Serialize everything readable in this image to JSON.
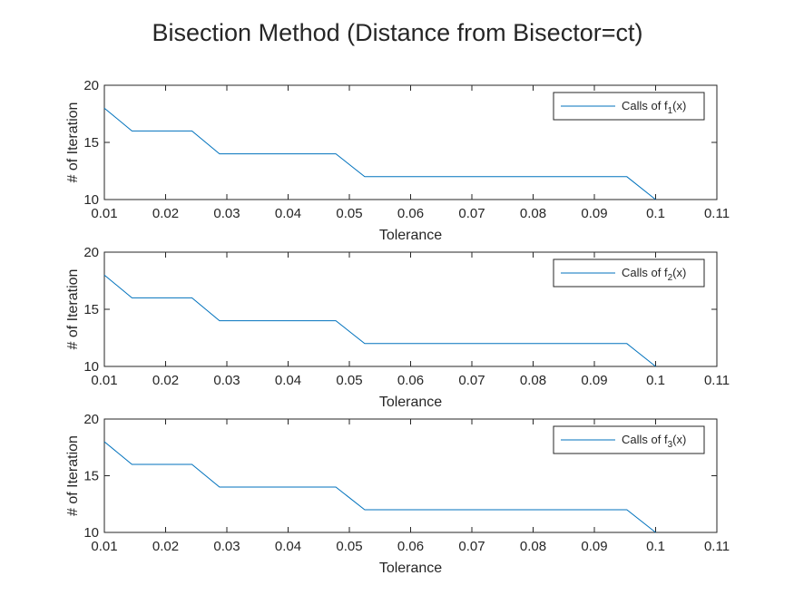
{
  "figure": {
    "title": "Bisection Method (Distance from Bisector=ct)"
  },
  "colors": {
    "line": "#0072BD",
    "axes": "#262626",
    "background": "#ffffff"
  },
  "chart_data": [
    {
      "type": "line",
      "xlabel": "Tolerance",
      "ylabel": "# of Iteration",
      "xlim": [
        0.01,
        0.11
      ],
      "ylim": [
        10,
        20
      ],
      "xticks": [
        "0.01",
        "0.02",
        "0.03",
        "0.04",
        "0.05",
        "0.06",
        "0.07",
        "0.08",
        "0.09",
        "0.1",
        "0.11"
      ],
      "yticks": [
        "10",
        "15",
        "20"
      ],
      "grid": false,
      "legend_position": "top-right",
      "series": [
        {
          "name": "Calls of f1(x)",
          "legend": {
            "prefix": "Calls of f",
            "sub": "1",
            "suffix": "(x)"
          },
          "x": [
            0.01,
            0.0145,
            0.0195,
            0.0243,
            0.0288,
            0.0335,
            0.0385,
            0.0434,
            0.0478,
            0.0525,
            0.0575,
            0.0625,
            0.0675,
            0.0725,
            0.0775,
            0.0825,
            0.0875,
            0.0953,
            0.1
          ],
          "y": [
            18,
            16,
            16,
            16,
            14,
            14,
            14,
            14,
            14,
            12,
            12,
            12,
            12,
            12,
            12,
            12,
            12,
            12,
            10
          ]
        }
      ]
    },
    {
      "type": "line",
      "xlabel": "Tolerance",
      "ylabel": "# of Iteration",
      "xlim": [
        0.01,
        0.11
      ],
      "ylim": [
        10,
        20
      ],
      "xticks": [
        "0.01",
        "0.02",
        "0.03",
        "0.04",
        "0.05",
        "0.06",
        "0.07",
        "0.08",
        "0.09",
        "0.1",
        "0.11"
      ],
      "yticks": [
        "10",
        "15",
        "20"
      ],
      "grid": false,
      "legend_position": "top-right",
      "series": [
        {
          "name": "Calls of f2(x)",
          "legend": {
            "prefix": "Calls of f",
            "sub": "2",
            "suffix": "(x)"
          },
          "x": [
            0.01,
            0.0145,
            0.0195,
            0.0243,
            0.0288,
            0.0335,
            0.0385,
            0.0434,
            0.0478,
            0.0525,
            0.0575,
            0.0625,
            0.0675,
            0.0725,
            0.0775,
            0.0825,
            0.0875,
            0.0953,
            0.1
          ],
          "y": [
            18,
            16,
            16,
            16,
            14,
            14,
            14,
            14,
            14,
            12,
            12,
            12,
            12,
            12,
            12,
            12,
            12,
            12,
            10
          ]
        }
      ]
    },
    {
      "type": "line",
      "xlabel": "Tolerance",
      "ylabel": "# of Iteration",
      "xlim": [
        0.01,
        0.11
      ],
      "ylim": [
        10,
        20
      ],
      "xticks": [
        "0.01",
        "0.02",
        "0.03",
        "0.04",
        "0.05",
        "0.06",
        "0.07",
        "0.08",
        "0.09",
        "0.1",
        "0.11"
      ],
      "yticks": [
        "10",
        "15",
        "20"
      ],
      "grid": false,
      "legend_position": "top-right",
      "series": [
        {
          "name": "Calls of f3(x)",
          "legend": {
            "prefix": "Calls of f",
            "sub": "3",
            "suffix": "(x)"
          },
          "x": [
            0.01,
            0.0145,
            0.0195,
            0.0243,
            0.0288,
            0.0335,
            0.0385,
            0.0434,
            0.0478,
            0.0525,
            0.0575,
            0.0625,
            0.0675,
            0.0725,
            0.0775,
            0.0825,
            0.0875,
            0.0953,
            0.1
          ],
          "y": [
            18,
            16,
            16,
            16,
            14,
            14,
            14,
            14,
            14,
            12,
            12,
            12,
            12,
            12,
            12,
            12,
            12,
            12,
            10
          ]
        }
      ]
    }
  ]
}
